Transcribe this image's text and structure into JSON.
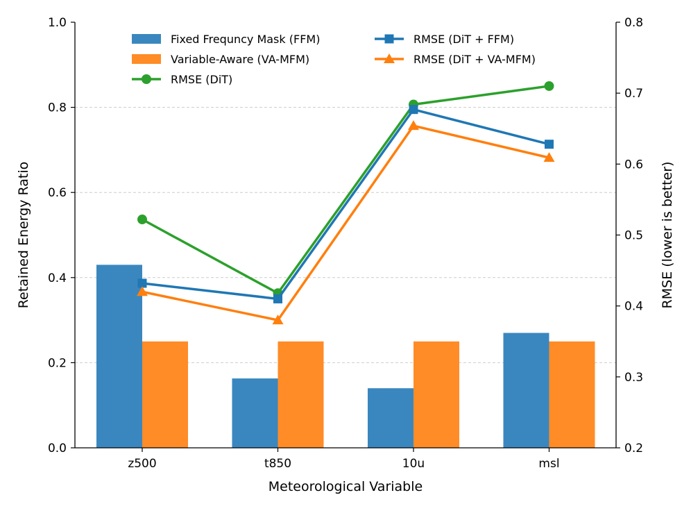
{
  "chart_data": {
    "type": "bar",
    "title": "",
    "xlabel": "Meteorological Variable",
    "ylabel_left": "Retained Energy Ratio",
    "ylabel_right": "RMSE (lower is better)",
    "categories": [
      "z500",
      "t850",
      "10u",
      "msl"
    ],
    "ylim_left": [
      0.0,
      1.0
    ],
    "ylim_right": [
      0.2,
      0.8
    ],
    "yticks_left": [
      "0.0",
      "0.2",
      "0.4",
      "0.6",
      "0.8",
      "1.0"
    ],
    "yticks_right": [
      "0.2",
      "0.3",
      "0.4",
      "0.5",
      "0.6",
      "0.7",
      "0.8"
    ],
    "grid": "horizontal dashed",
    "legend_position": "top",
    "bar_series": [
      {
        "name": "Fixed Frequncy Mask (FFM)",
        "color": "#3a87bf",
        "values": [
          0.43,
          0.163,
          0.14,
          0.27
        ]
      },
      {
        "name": "Variable-Aware (VA-MFM)",
        "color": "#ff8c26",
        "values": [
          0.25,
          0.25,
          0.25,
          0.25
        ]
      }
    ],
    "line_series": [
      {
        "name": "RMSE (DiT)",
        "color": "#2ca02c",
        "marker": "circle",
        "values": [
          0.522,
          0.418,
          0.684,
          0.71
        ]
      },
      {
        "name": "RMSE (DiT + FFM)",
        "color": "#1f77b4",
        "marker": "square",
        "values": [
          0.432,
          0.41,
          0.677,
          0.628
        ]
      },
      {
        "name": "RMSE (DiT + VA-MFM)",
        "color": "#ff7f0e",
        "marker": "triangle",
        "values": [
          0.42,
          0.38,
          0.654,
          0.609
        ]
      }
    ]
  }
}
